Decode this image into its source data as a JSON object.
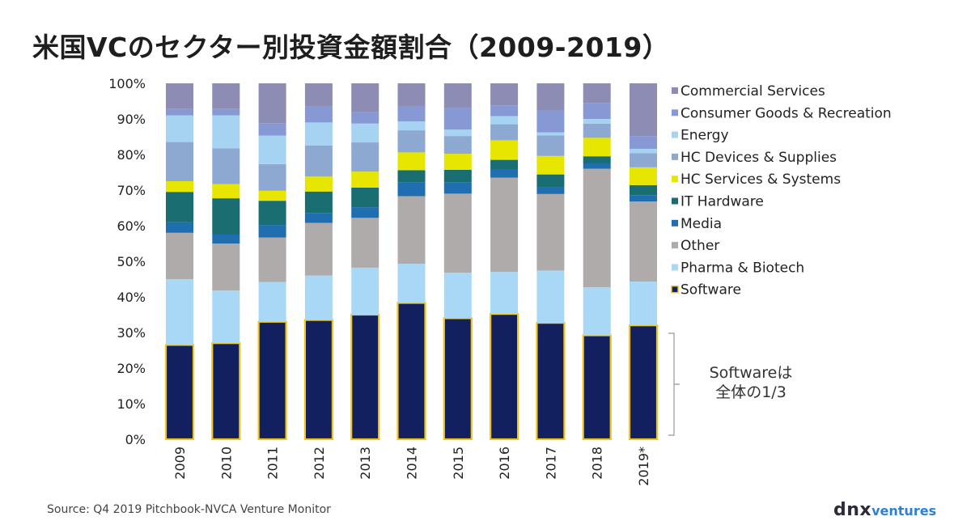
{
  "title": "米国VCのセクター別投資金額割合（2009-2019）",
  "source": "Source: Q4 2019 Pitchbook-NVCA Venture Monitor",
  "logo": {
    "dnx": "dnx",
    "ventures": "ventures"
  },
  "annotation": {
    "line1": "Softwareは",
    "line2": "全体の1/3"
  },
  "chart_data": {
    "type": "bar",
    "stacked": true,
    "percent": true,
    "categories": [
      "2009",
      "2010",
      "2011",
      "2012",
      "2013",
      "2014",
      "2015",
      "2016",
      "2017",
      "2018",
      "2019*"
    ],
    "ylim": [
      0,
      100
    ],
    "yticks": [
      "0%",
      "10%",
      "20%",
      "30%",
      "40%",
      "50%",
      "60%",
      "70%",
      "80%",
      "90%",
      "100%"
    ],
    "grid": false,
    "legend_position": "right",
    "series": [
      {
        "name": "Software",
        "color": "#13205f",
        "values": [
          26.5,
          27,
          33,
          33.5,
          35,
          38.3,
          34,
          35.2,
          32.7,
          29.2,
          32
        ]
      },
      {
        "name": "Pharma & Biotech",
        "color": "#a9d8f6",
        "values": [
          18.5,
          14.8,
          11.2,
          12.5,
          13.2,
          11,
          12.8,
          11.8,
          14.7,
          13.5,
          12.3
        ]
      },
      {
        "name": "Other",
        "color": "#afabab",
        "values": [
          13,
          13.2,
          12.5,
          14.8,
          14,
          19,
          22.2,
          26.5,
          21.5,
          33.3,
          22.5
        ]
      },
      {
        "name": "Media",
        "color": "#1f6fb0",
        "values": [
          3,
          2.5,
          3.5,
          2.8,
          3,
          3.8,
          3.2,
          2.3,
          2,
          1.5,
          1.8
        ]
      },
      {
        "name": "IT Hardware",
        "color": "#1a6e72",
        "values": [
          8.5,
          10.2,
          6.8,
          6,
          5.5,
          3.5,
          3.5,
          2.7,
          3.5,
          2,
          2.8
        ]
      },
      {
        "name": "HC Services & Systems",
        "color": "#e6e600",
        "values": [
          3,
          4,
          2.8,
          4.2,
          4.5,
          5,
          4.5,
          5.5,
          5.2,
          5.2,
          5
        ]
      },
      {
        "name": "HC Devices & Supplies",
        "color": "#8ea9d1",
        "values": [
          11,
          10,
          7.5,
          8.7,
          8.2,
          6.2,
          5,
          4.5,
          5.8,
          4,
          4
        ]
      },
      {
        "name": "Energy",
        "color": "#a6d3f2",
        "values": [
          7.5,
          9.3,
          8,
          6.5,
          5.3,
          2.5,
          1.8,
          2.3,
          0.8,
          1.3,
          1.2
        ]
      },
      {
        "name": "Consumer Goods & Recreation",
        "color": "#8799d4",
        "values": [
          1.8,
          1.8,
          3.5,
          4.5,
          3.2,
          4.2,
          6,
          3,
          6.2,
          4.5,
          3.6
        ]
      },
      {
        "name": "Commercial Services",
        "color": "#8c8cb4",
        "values": [
          7.2,
          7.2,
          11.2,
          6.5,
          8.1,
          6.5,
          7,
          6.2,
          7.6,
          5.5,
          14.8
        ]
      }
    ]
  }
}
